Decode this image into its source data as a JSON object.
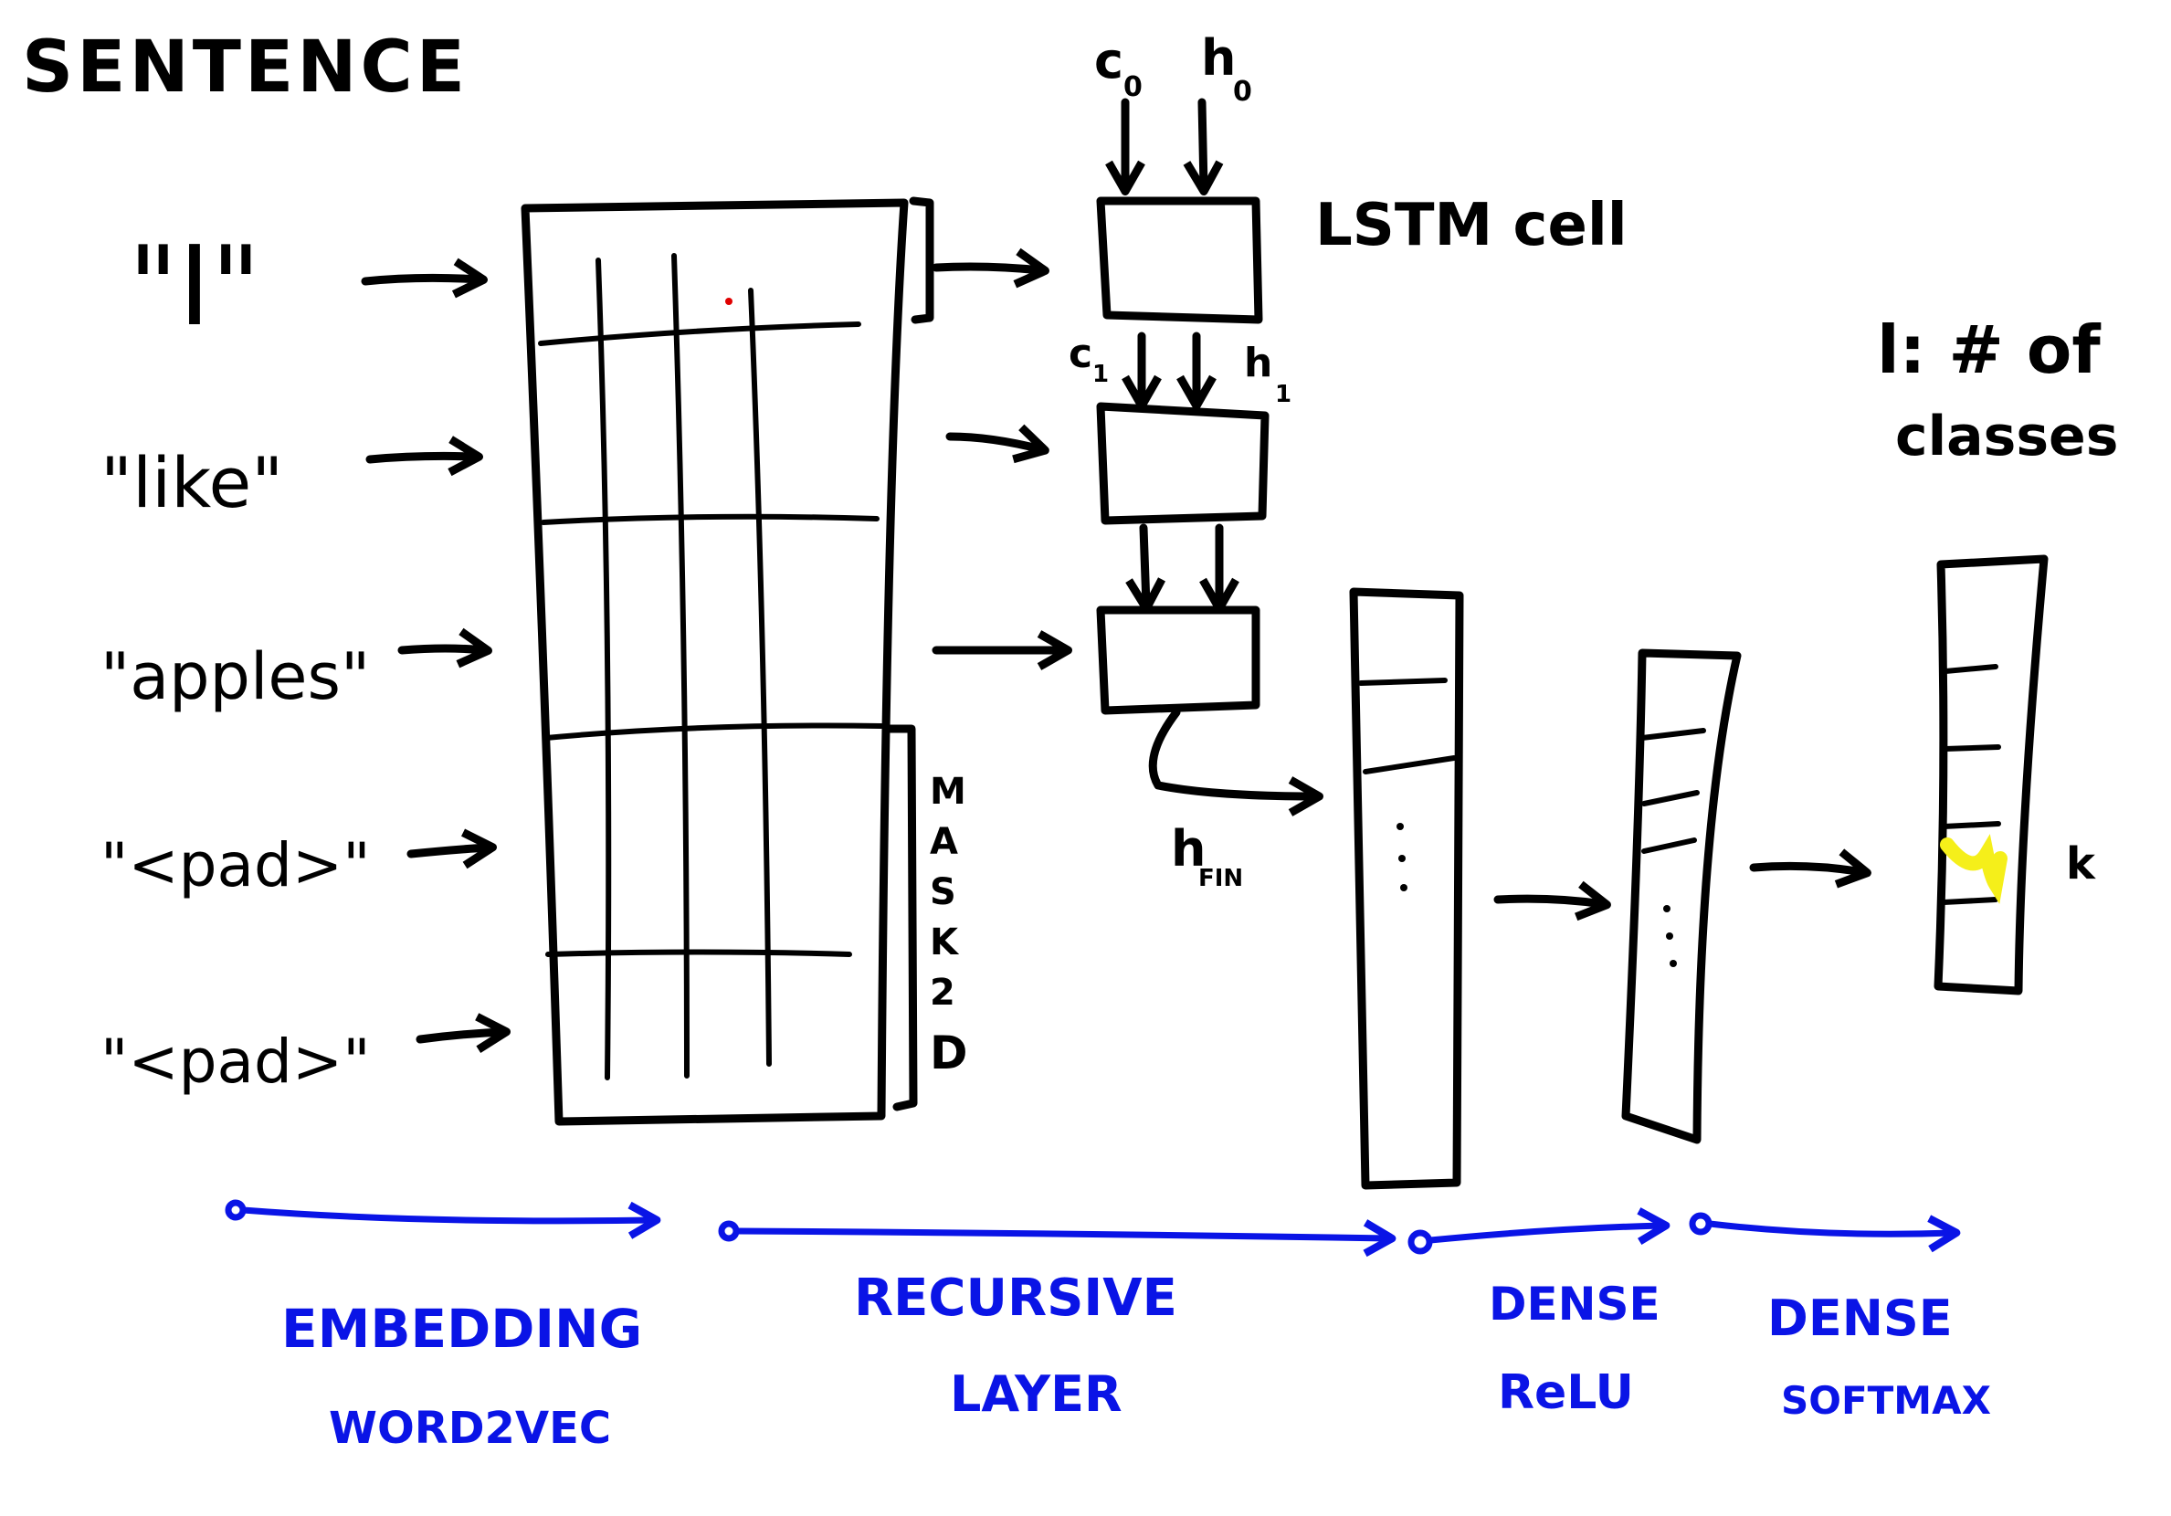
{
  "title": "SENTENCE",
  "tokens": [
    {
      "text": "\"I\""
    },
    {
      "text": "\"like\""
    },
    {
      "text": "\"apples\""
    },
    {
      "text": "\"<pad>\""
    },
    {
      "text": "\"<pad>\""
    }
  ],
  "mask_label": [
    "M",
    "A",
    "S",
    "K",
    "2",
    "D"
  ],
  "lstm": {
    "cell_label": "LSTM cell",
    "c0": "c",
    "c0_sub": "0",
    "h0": "h",
    "h0_sub": "0",
    "c1": "c",
    "c1_sub": "1",
    "h1": "h",
    "h1_sub": "1",
    "hfin": "h",
    "hfin_sub": "FIN"
  },
  "classes_note": [
    "l: # of",
    "classes"
  ],
  "output_marker": "k",
  "highlight_color": "#f5ef1a",
  "ink_color": "#000000",
  "stage_color": "#0a14e6",
  "stages": [
    {
      "line1": "EMBEDDING",
      "line2": "WORD2VEC"
    },
    {
      "line1": "RECURSIVE",
      "line2": "LAYER"
    },
    {
      "line1": "DENSE",
      "line2": "ReLU"
    },
    {
      "line1": "DENSE",
      "line2": "SOFTMAX"
    }
  ]
}
